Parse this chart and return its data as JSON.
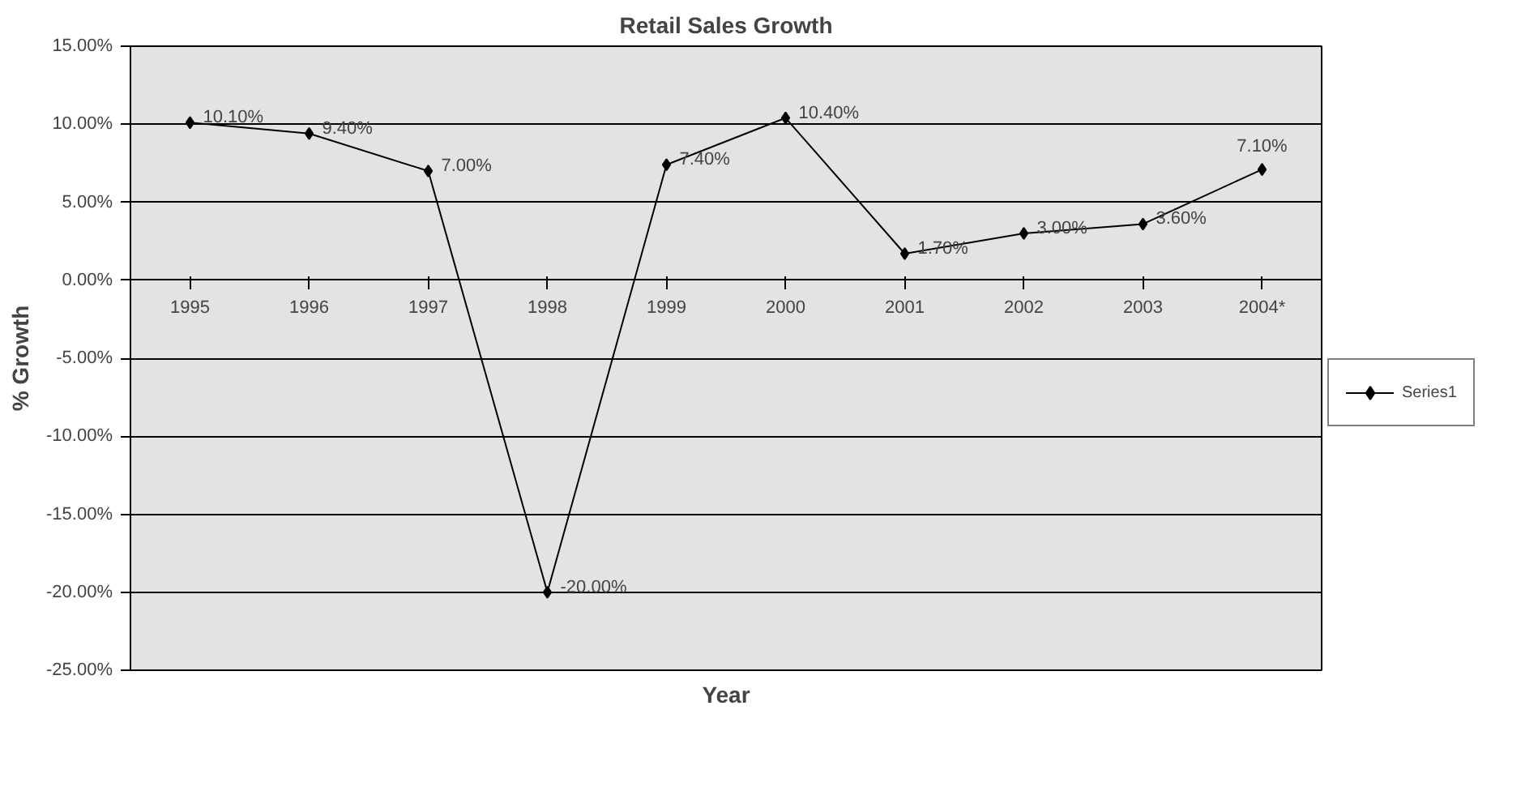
{
  "chart_data": {
    "type": "line",
    "title": "Retail Sales Growth",
    "xlabel": "Year",
    "ylabel": "% Growth",
    "categories": [
      "1995",
      "1996",
      "1997",
      "1998",
      "1999",
      "2000",
      "2001",
      "2002",
      "2003",
      "2004*"
    ],
    "series": [
      {
        "name": "Series1",
        "color": "#000000",
        "values": [
          10.1,
          9.4,
          7.0,
          -20.0,
          7.4,
          10.4,
          1.7,
          3.0,
          3.6,
          7.1
        ],
        "value_labels": [
          "10.10%",
          "9.40%",
          "7.00%",
          "-20.00%",
          "7.40%",
          "10.40%",
          "1.70%",
          "3.00%",
          "3.60%",
          "7.10%"
        ]
      }
    ],
    "ylim": [
      -25,
      15
    ],
    "yticks": [
      {
        "value": -25,
        "label": "-25.00%"
      },
      {
        "value": -20,
        "label": "-20.00%"
      },
      {
        "value": -15,
        "label": "-15.00%"
      },
      {
        "value": -10,
        "label": "-10.00%"
      },
      {
        "value": -5,
        "label": "-5.00%"
      },
      {
        "value": 0,
        "label": "0.00%"
      },
      {
        "value": 5,
        "label": "5.00%"
      },
      {
        "value": 10,
        "label": "10.00%"
      },
      {
        "value": 15,
        "label": "15.00%"
      }
    ],
    "grid": "y",
    "legend": "right",
    "marker": "diamond",
    "line_style": "solid"
  }
}
